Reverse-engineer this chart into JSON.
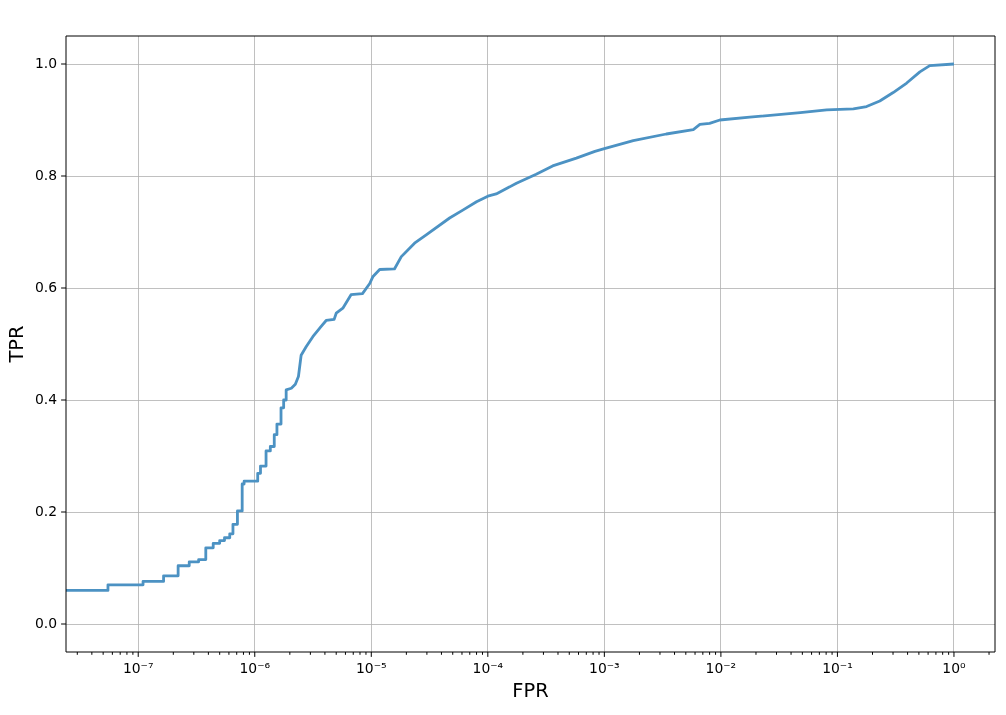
{
  "chart_data": {
    "type": "line",
    "xlabel": "FPR",
    "ylabel": "TPR",
    "log": "x",
    "grid": true,
    "legend": false,
    "xlim": [
      2.4e-08,
      2.25
    ],
    "ylim": [
      -0.05,
      1.05
    ],
    "xticks": [
      {
        "value": 3e-08,
        "label": null
      },
      {
        "value": 4e-08,
        "label": null
      },
      {
        "value": 5e-08,
        "label": null
      },
      {
        "value": 6e-08,
        "label": null
      },
      {
        "value": 7e-08,
        "label": null
      },
      {
        "value": 8e-08,
        "label": null
      },
      {
        "value": 9e-08,
        "label": null
      },
      {
        "value": 1e-07,
        "label": "10⁻⁷"
      },
      {
        "value": 2e-07,
        "label": null
      },
      {
        "value": 3e-07,
        "label": null
      },
      {
        "value": 4e-07,
        "label": null
      },
      {
        "value": 5e-07,
        "label": null
      },
      {
        "value": 6e-07,
        "label": null
      },
      {
        "value": 7e-07,
        "label": null
      },
      {
        "value": 8e-07,
        "label": null
      },
      {
        "value": 9e-07,
        "label": null
      },
      {
        "value": 1e-06,
        "label": "10⁻⁶"
      },
      {
        "value": 2e-06,
        "label": null
      },
      {
        "value": 3e-06,
        "label": null
      },
      {
        "value": 4e-06,
        "label": null
      },
      {
        "value": 5e-06,
        "label": null
      },
      {
        "value": 6e-06,
        "label": null
      },
      {
        "value": 7e-06,
        "label": null
      },
      {
        "value": 8e-06,
        "label": null
      },
      {
        "value": 9e-06,
        "label": null
      },
      {
        "value": 1e-05,
        "label": "10⁻⁵"
      },
      {
        "value": 2e-05,
        "label": null
      },
      {
        "value": 3e-05,
        "label": null
      },
      {
        "value": 4e-05,
        "label": null
      },
      {
        "value": 5e-05,
        "label": null
      },
      {
        "value": 6e-05,
        "label": null
      },
      {
        "value": 7e-05,
        "label": null
      },
      {
        "value": 8e-05,
        "label": null
      },
      {
        "value": 9e-05,
        "label": null
      },
      {
        "value": 0.0001,
        "label": "10⁻⁴"
      },
      {
        "value": 0.0002,
        "label": null
      },
      {
        "value": 0.0003,
        "label": null
      },
      {
        "value": 0.0004,
        "label": null
      },
      {
        "value": 0.0005,
        "label": null
      },
      {
        "value": 0.0006,
        "label": null
      },
      {
        "value": 0.0007,
        "label": null
      },
      {
        "value": 0.0008,
        "label": null
      },
      {
        "value": 0.0009,
        "label": null
      },
      {
        "value": 0.001,
        "label": "10⁻³"
      },
      {
        "value": 0.002,
        "label": null
      },
      {
        "value": 0.003,
        "label": null
      },
      {
        "value": 0.004,
        "label": null
      },
      {
        "value": 0.005,
        "label": null
      },
      {
        "value": 0.006,
        "label": null
      },
      {
        "value": 0.007,
        "label": null
      },
      {
        "value": 0.008,
        "label": null
      },
      {
        "value": 0.009,
        "label": null
      },
      {
        "value": 0.01,
        "label": "10⁻²"
      },
      {
        "value": 0.02,
        "label": null
      },
      {
        "value": 0.03,
        "label": null
      },
      {
        "value": 0.04,
        "label": null
      },
      {
        "value": 0.05,
        "label": null
      },
      {
        "value": 0.06,
        "label": null
      },
      {
        "value": 0.07,
        "label": null
      },
      {
        "value": 0.08,
        "label": null
      },
      {
        "value": 0.09,
        "label": null
      },
      {
        "value": 0.1,
        "label": "10⁻¹"
      },
      {
        "value": 0.2,
        "label": null
      },
      {
        "value": 0.3,
        "label": null
      },
      {
        "value": 0.4,
        "label": null
      },
      {
        "value": 0.5,
        "label": null
      },
      {
        "value": 0.6,
        "label": null
      },
      {
        "value": 0.7,
        "label": null
      },
      {
        "value": 0.8,
        "label": null
      },
      {
        "value": 0.9,
        "label": null
      },
      {
        "value": 1,
        "label": "10⁰"
      },
      {
        "value": 2,
        "label": null
      }
    ],
    "yticks": [
      {
        "value": 0,
        "label": "0.0"
      },
      0.2,
      0.4,
      0.6,
      0.8,
      {
        "value": 1,
        "label": "1.0"
      }
    ],
    "x": [
      2.4e-08,
      5.5e-08,
      5.5e-08,
      1.1e-07,
      1.1e-07,
      1.65e-07,
      1.65e-07,
      2.2e-07,
      2.2e-07,
      2.74e-07,
      2.74e-07,
      3.3e-07,
      3.3e-07,
      3.8e-07,
      3.8e-07,
      4.4e-07,
      4.4e-07,
      5e-07,
      5e-07,
      5.5e-07,
      5.5e-07,
      6.1e-07,
      6.1e-07,
      6.5e-07,
      6.5e-07,
      7.1e-07,
      7.1e-07,
      7.8e-07,
      7.8e-07,
      8.1e-07,
      8.1e-07,
      1.06e-06,
      1.06e-06,
      1.12e-06,
      1.12e-06,
      1.25e-06,
      1.25e-06,
      1.36e-06,
      1.36e-06,
      1.47e-06,
      1.47e-06,
      1.55e-06,
      1.55e-06,
      1.68e-06,
      1.68e-06,
      1.77e-06,
      1.77e-06,
      1.86e-06,
      1.86e-06,
      2.06e-06,
      2.23e-06,
      2.37e-06,
      2.5e-06,
      2.76e-06,
      3.15e-06,
      3.7e-06,
      4.1e-06,
      4.8e-06,
      5e-06,
      5.7e-06,
      6.7e-06,
      8.4e-06,
      9.7e-06,
      1.03e-05,
      1.18e-05,
      1.58e-05,
      1.81e-05,
      2.35e-05,
      2.96e-05,
      4.7e-05,
      6.1e-05,
      8e-05,
      0.0001,
      0.000118,
      0.000176,
      0.00026,
      0.00036,
      0.000575,
      0.00083,
      0.001,
      0.00177,
      0.0034,
      0.0058,
      0.0066,
      0.008,
      0.0098,
      0.0177,
      0.048,
      0.081,
      0.137,
      0.178,
      0.231,
      0.301,
      0.393,
      0.51,
      0.62,
      1.0
    ],
    "series": [
      {
        "color": "#4c92c3",
        "values": [
          0.06,
          0.06,
          0.07,
          0.07,
          0.076,
          0.076,
          0.086,
          0.086,
          0.104,
          0.104,
          0.111,
          0.111,
          0.115,
          0.115,
          0.136,
          0.136,
          0.144,
          0.144,
          0.149,
          0.149,
          0.154,
          0.154,
          0.161,
          0.161,
          0.178,
          0.178,
          0.202,
          0.202,
          0.25,
          0.25,
          0.255,
          0.255,
          0.269,
          0.269,
          0.282,
          0.282,
          0.309,
          0.309,
          0.317,
          0.317,
          0.338,
          0.338,
          0.357,
          0.357,
          0.386,
          0.386,
          0.4,
          0.4,
          0.418,
          0.421,
          0.428,
          0.442,
          0.48,
          0.495,
          0.513,
          0.531,
          0.542,
          0.544,
          0.555,
          0.564,
          0.588,
          0.59,
          0.608,
          0.62,
          0.633,
          0.634,
          0.656,
          0.68,
          0.695,
          0.725,
          0.739,
          0.754,
          0.764,
          0.768,
          0.787,
          0.803,
          0.818,
          0.832,
          0.844,
          0.849,
          0.863,
          0.875,
          0.883,
          0.892,
          0.894,
          0.9,
          0.905,
          0.913,
          0.918,
          0.92,
          0.924,
          0.934,
          0.949,
          0.966,
          0.986,
          0.997,
          1.0
        ]
      }
    ]
  }
}
